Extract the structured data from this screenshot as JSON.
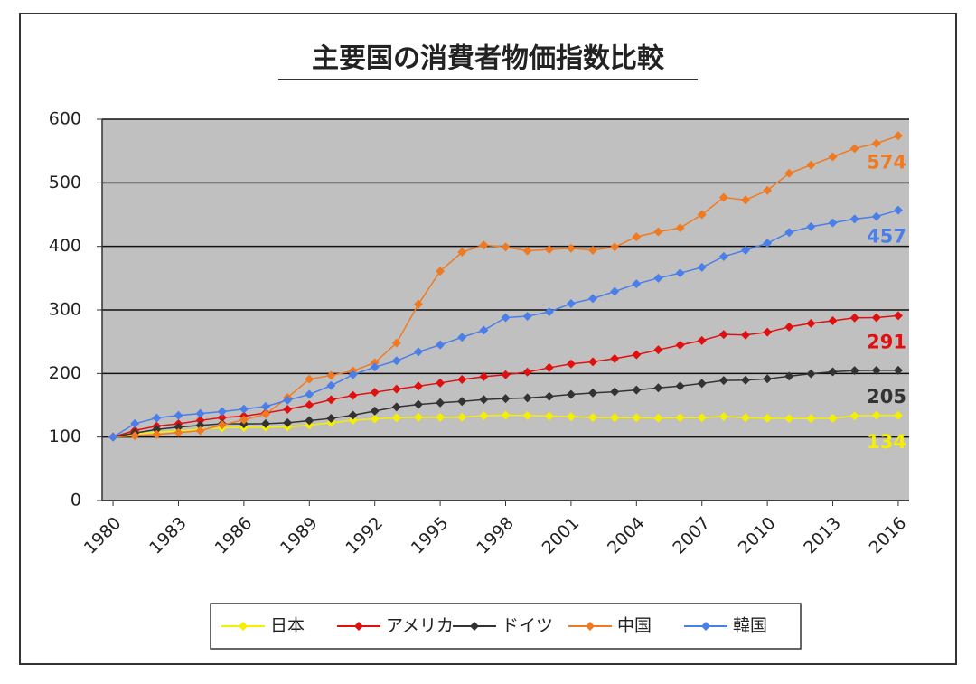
{
  "chart_data": {
    "type": "line",
    "title": "主要国の消費者物価指数比較",
    "x": [
      1980,
      1981,
      1982,
      1983,
      1984,
      1985,
      1986,
      1987,
      1988,
      1989,
      1990,
      1991,
      1992,
      1993,
      1994,
      1995,
      1996,
      1997,
      1998,
      1999,
      2000,
      2001,
      2002,
      2003,
      2004,
      2005,
      2006,
      2007,
      2008,
      2009,
      2010,
      2011,
      2012,
      2013,
      2014,
      2015,
      2016
    ],
    "xlim": [
      1979.5,
      2016.5
    ],
    "xticks": [
      1980,
      1983,
      1986,
      1989,
      1992,
      1995,
      1998,
      2001,
      2004,
      2007,
      2010,
      2013,
      2016
    ],
    "ylim": [
      0,
      600
    ],
    "yticks": [
      0,
      100,
      200,
      300,
      400,
      500,
      600
    ],
    "grid": true,
    "series": [
      {
        "name": "日本",
        "color": "#f5ef00",
        "values": [
          100,
          104.9,
          107.7,
          109.7,
          112.2,
          114.5,
          115.2,
          115.3,
          116.1,
          118.7,
          122.4,
          126.5,
          128.7,
          130.3,
          131.1,
          131,
          131.2,
          133.5,
          134.4,
          133.9,
          133,
          132,
          130.8,
          130.4,
          130.4,
          130,
          130.4,
          130.4,
          132.3,
          130.5,
          129.6,
          129.2,
          129.2,
          129.6,
          133.1,
          134.2,
          134
        ]
      },
      {
        "name": "アメリカ",
        "color": "#e01010",
        "values": [
          100,
          110.4,
          117.1,
          120.9,
          126.1,
          130.6,
          133,
          137.9,
          143.6,
          150.5,
          158.7,
          165.4,
          170.4,
          175.5,
          180,
          185.1,
          190.5,
          194.9,
          198,
          202.3,
          209.1,
          215,
          218.4,
          223.4,
          229.4,
          237.2,
          244.8,
          251.8,
          261.5,
          260.6,
          264.9,
          273.2,
          278.9,
          283,
          287.6,
          287.9,
          291
        ]
      },
      {
        "name": "ドイツ",
        "color": "#333333",
        "values": [
          100,
          106.3,
          111.9,
          115.5,
          118.3,
          120.8,
          120.7,
          121,
          122.5,
          125.9,
          129.3,
          134.3,
          141,
          147.3,
          151.3,
          153.9,
          156.1,
          158.9,
          160.4,
          161.5,
          163.8,
          167,
          169.3,
          171.1,
          174,
          177.4,
          180.2,
          184.3,
          188.9,
          189.5,
          191.5,
          195.6,
          199.6,
          202.6,
          204.5,
          205,
          205
        ]
      },
      {
        "name": "中国",
        "color": "#f07a22",
        "values": [
          100,
          102,
          104,
          107,
          110,
          119,
          127,
          136,
          162,
          191,
          197,
          204,
          217,
          248,
          309,
          361,
          391,
          402,
          399,
          393,
          395,
          397,
          394,
          399,
          415,
          423,
          429,
          450,
          477,
          473,
          488,
          515,
          528,
          541,
          554,
          562,
          574
        ]
      },
      {
        "name": "韓国",
        "color": "#4a7ee8",
        "values": [
          100,
          121,
          130,
          134,
          137,
          140,
          144,
          148,
          158,
          167,
          181,
          198,
          210,
          220,
          234,
          245,
          257,
          268,
          288,
          290,
          297,
          310,
          318,
          329,
          341,
          350,
          358,
          367,
          384,
          394,
          405,
          422,
          431,
          437,
          443,
          447,
          457
        ]
      }
    ]
  }
}
